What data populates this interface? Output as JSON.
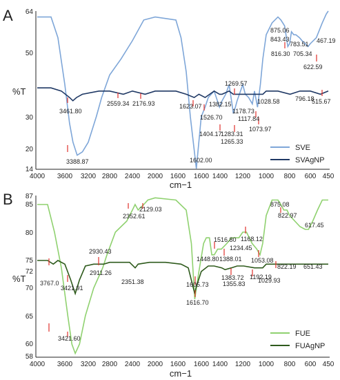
{
  "colors": {
    "sve": "#7ea6d8",
    "svagnp": "#1f3864",
    "fue": "#8fd16f",
    "fuagnp": "#2e5a1c",
    "marker": "#e0302a",
    "axis": "#222222"
  },
  "chart_data": [
    {
      "type": "line",
      "panel_label": "A",
      "xlabel": "cm−1",
      "ylabel": "%T",
      "xlim": [
        4000,
        450
      ],
      "ylim": [
        14,
        64
      ],
      "x_ticks": [
        "4000",
        "3600",
        "3200",
        "2800",
        "2400",
        "2000",
        "1600",
        "1400",
        "1200",
        "1000",
        "800",
        "600",
        "450"
      ],
      "y_ticks": [
        "14",
        "20",
        "30",
        "50",
        "64"
      ],
      "series": [
        {
          "name": "SVE",
          "points": [
            [
              4000,
              62
            ],
            [
              3800,
              62
            ],
            [
              3700,
              55
            ],
            [
              3600,
              40
            ],
            [
              3520,
              28
            ],
            [
              3461,
              22
            ],
            [
              3389,
              18
            ],
            [
              3300,
              19
            ],
            [
              3200,
              22
            ],
            [
              3050,
              30
            ],
            [
              2950,
              36
            ],
            [
              2800,
              43
            ],
            [
              2600,
              48
            ],
            [
              2400,
              54
            ],
            [
              2200,
              61
            ],
            [
              2000,
              62
            ],
            [
              1800,
              61
            ],
            [
              1750,
              55
            ],
            [
              1700,
              44
            ],
            [
              1660,
              30
            ],
            [
              1602,
              14
            ],
            [
              1560,
              30
            ],
            [
              1527,
              33
            ],
            [
              1500,
              36
            ],
            [
              1450,
              38
            ],
            [
              1404,
              33
            ],
            [
              1382,
              35
            ],
            [
              1350,
              37
            ],
            [
              1320,
              40
            ],
            [
              1290,
              33
            ],
            [
              1283,
              31
            ],
            [
              1265,
              33
            ],
            [
              1250,
              35
            ],
            [
              1200,
              40
            ],
            [
              1178,
              37
            ],
            [
              1150,
              36
            ],
            [
              1118,
              34
            ],
            [
              1100,
              38
            ],
            [
              1074,
              33
            ],
            [
              1050,
              40
            ],
            [
              1029,
              48
            ],
            [
              1000,
              56
            ],
            [
              950,
              60
            ],
            [
              900,
              62
            ],
            [
              875,
              61
            ],
            [
              843,
              59
            ],
            [
              816,
              52
            ],
            [
              800,
              53
            ],
            [
              783,
              57
            ],
            [
              760,
              56
            ],
            [
              740,
              56
            ],
            [
              705,
              55
            ],
            [
              680,
              54
            ],
            [
              650,
              53
            ],
            [
              623,
              52
            ],
            [
              600,
              53
            ],
            [
              550,
              55
            ],
            [
              500,
              60
            ],
            [
              467,
              63
            ],
            [
              450,
              64
            ]
          ]
        },
        {
          "name": "SVAgNP",
          "points": [
            [
              4000,
              39
            ],
            [
              3800,
              39
            ],
            [
              3650,
              38
            ],
            [
              3520,
              36
            ],
            [
              3462,
              35
            ],
            [
              3400,
              36
            ],
            [
              3300,
              37
            ],
            [
              3000,
              38
            ],
            [
              2800,
              38
            ],
            [
              2559,
              37
            ],
            [
              2400,
              38
            ],
            [
              2177,
              37
            ],
            [
              2000,
              38
            ],
            [
              1800,
              38
            ],
            [
              1700,
              37
            ],
            [
              1623,
              36
            ],
            [
              1580,
              37
            ],
            [
              1527,
              36
            ],
            [
              1450,
              38
            ],
            [
              1404,
              37
            ],
            [
              1382,
              37
            ],
            [
              1320,
              38
            ],
            [
              1283,
              37
            ],
            [
              1200,
              37
            ],
            [
              1150,
              37
            ],
            [
              1118,
              37
            ],
            [
              1074,
              37
            ],
            [
              1029,
              37
            ],
            [
              1000,
              38
            ],
            [
              900,
              38
            ],
            [
              796,
              37
            ],
            [
              700,
              38
            ],
            [
              600,
              38
            ],
            [
              516,
              37
            ],
            [
              450,
              38
            ]
          ]
        }
      ],
      "annotations": [
        "875.06",
        "843.43",
        "783.51",
        "816.30",
        "705.34",
        "622.59",
        "467.19",
        "1269.57",
        "3461.80",
        "2559.34",
        "2176.93",
        "1623.07",
        "1382.15",
        "1526.70",
        "1178.73",
        "1028.58",
        "796.18",
        "515.67",
        "1117.84",
        "1073.97",
        "1404.17",
        "1283.31",
        "1265.33",
        "3388.87",
        "1602.00"
      ]
    },
    {
      "type": "line",
      "panel_label": "B",
      "xlabel": "cm−1",
      "ylabel": "%T",
      "xlim": [
        4000,
        450
      ],
      "ylim": [
        58,
        87
      ],
      "x_ticks": [
        "4000",
        "3600",
        "3200",
        "2800",
        "2400",
        "2000",
        "1600",
        "1400",
        "1200",
        "1000",
        "800",
        "600",
        "450"
      ],
      "y_ticks": [
        "58",
        "60",
        "65",
        "70",
        "72",
        "75",
        "80",
        "85",
        "87"
      ],
      "series": [
        {
          "name": "FUE",
          "points": [
            [
              4000,
              85
            ],
            [
              3850,
              85
            ],
            [
              3750,
              80
            ],
            [
              3650,
              73
            ],
            [
              3550,
              65
            ],
            [
              3480,
              60
            ],
            [
              3422,
              58.5
            ],
            [
              3350,
              60
            ],
            [
              3250,
              65
            ],
            [
              3100,
              70
            ],
            [
              2930,
              73
            ],
            [
              2850,
              76
            ],
            [
              2700,
              80
            ],
            [
              2500,
              82
            ],
            [
              2400,
              84
            ],
            [
              2353,
              85
            ],
            [
              2300,
              84
            ],
            [
              2200,
              85
            ],
            [
              2129,
              86
            ],
            [
              2000,
              86.5
            ],
            [
              1800,
              86
            ],
            [
              1700,
              84
            ],
            [
              1650,
              78
            ],
            [
              1617,
              68
            ],
            [
              1580,
              72
            ],
            [
              1540,
              78
            ],
            [
              1517,
              79
            ],
            [
              1490,
              79
            ],
            [
              1470,
              76
            ],
            [
              1449,
              76
            ],
            [
              1420,
              77
            ],
            [
              1388,
              77
            ],
            [
              1340,
              78
            ],
            [
              1300,
              79
            ],
            [
              1234,
              79
            ],
            [
              1200,
              80
            ],
            [
              1168,
              80
            ],
            [
              1120,
              78
            ],
            [
              1080,
              77
            ],
            [
              1053,
              76
            ],
            [
              1030,
              78
            ],
            [
              1000,
              83
            ],
            [
              950,
              86
            ],
            [
              900,
              86
            ],
            [
              875,
              85
            ],
            [
              850,
              84
            ],
            [
              823,
              84
            ],
            [
              800,
              83
            ],
            [
              750,
              82
            ],
            [
              700,
              81
            ],
            [
              650,
              80.5
            ],
            [
              617,
              80.5
            ],
            [
              580,
              82
            ],
            [
              540,
              84
            ],
            [
              500,
              86
            ],
            [
              460,
              86
            ],
            [
              450,
              86
            ]
          ]
        },
        {
          "name": "FUAgNP",
          "points": [
            [
              4000,
              75
            ],
            [
              3850,
              75
            ],
            [
              3767,
              74
            ],
            [
              3700,
              75
            ],
            [
              3600,
              74
            ],
            [
              3500,
              71
            ],
            [
              3422,
              69
            ],
            [
              3350,
              71
            ],
            [
              3250,
              73.5
            ],
            [
              3100,
              74
            ],
            [
              2911,
              74
            ],
            [
              2800,
              74.5
            ],
            [
              2600,
              74.5
            ],
            [
              2450,
              74.5
            ],
            [
              2351,
              73
            ],
            [
              2300,
              74
            ],
            [
              2100,
              74.5
            ],
            [
              1900,
              74.5
            ],
            [
              1750,
              74
            ],
            [
              1680,
              73
            ],
            [
              1617,
              69
            ],
            [
              1606,
              70
            ],
            [
              1560,
              72
            ],
            [
              1500,
              73.5
            ],
            [
              1450,
              73.5
            ],
            [
              1384,
              73
            ],
            [
              1356,
              72.5
            ],
            [
              1300,
              73
            ],
            [
              1250,
              73.5
            ],
            [
              1192,
              73.5
            ],
            [
              1100,
              73
            ],
            [
              1030,
              73
            ],
            [
              1000,
              74
            ],
            [
              900,
              74
            ],
            [
              822,
              74
            ],
            [
              750,
              74
            ],
            [
              651,
              74
            ],
            [
              550,
              74
            ],
            [
              450,
              74
            ]
          ]
        }
      ],
      "annotations": [
        "875.08",
        "822.97",
        "617.45",
        "2352.61",
        "2129.03",
        "1516.80",
        "1448.80",
        "1388.01",
        "1234.45",
        "1168.12",
        "1053.08",
        "2930.43",
        "2911.26",
        "3767.0",
        "3421.91",
        "2351.38",
        "1605.73",
        "1383.72",
        "1355.83",
        "1192.19",
        "1029.93",
        "822.19",
        "651.43",
        "1616.70",
        "3421.60"
      ]
    }
  ]
}
